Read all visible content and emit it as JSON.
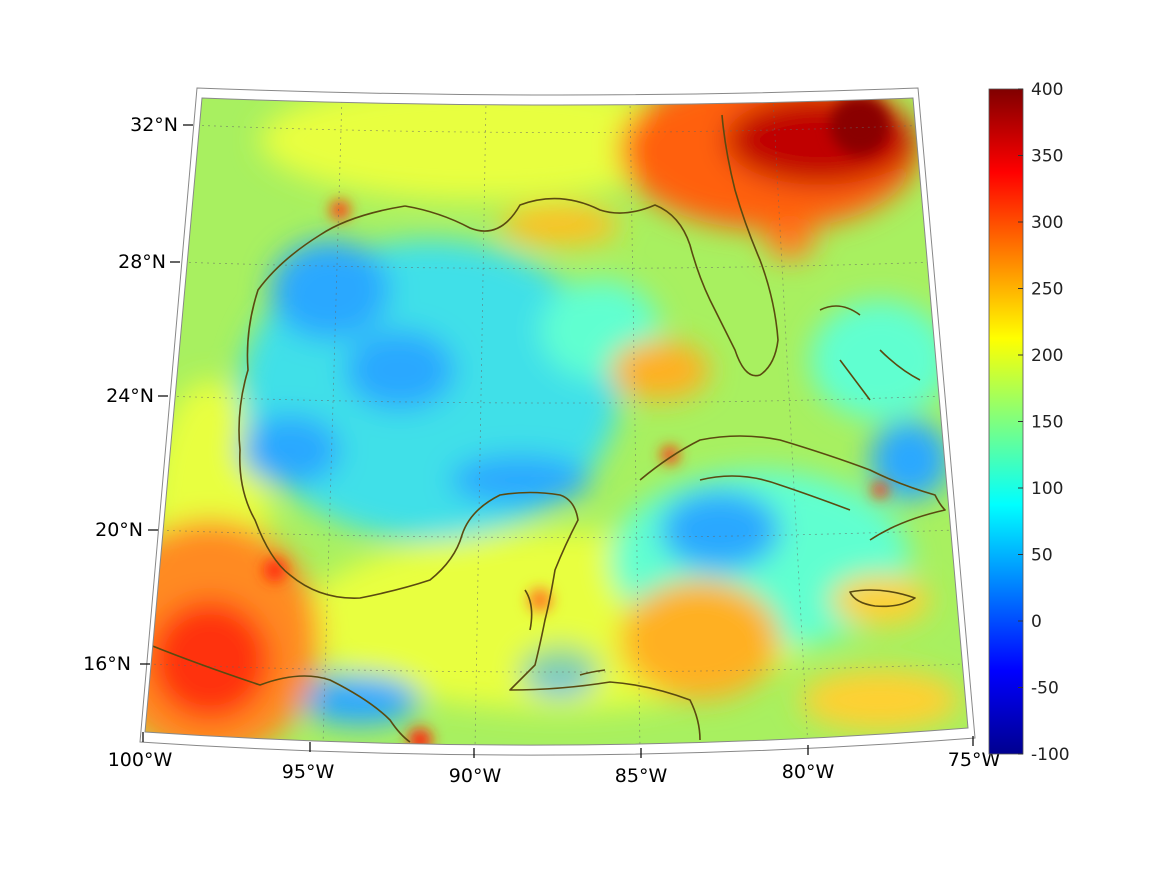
{
  "map": {
    "lon_range": [
      -100,
      -75
    ],
    "lat_range": [
      14,
      33
    ],
    "lon_ticks": [
      {
        "value": -100,
        "label": "100°W"
      },
      {
        "value": -95,
        "label": "95°W"
      },
      {
        "value": -90,
        "label": "90°W"
      },
      {
        "value": -85,
        "label": "85°W"
      },
      {
        "value": -80,
        "label": "80°W"
      },
      {
        "value": -75,
        "label": "75°W"
      }
    ],
    "lat_ticks": [
      {
        "value": 32,
        "label": "32°N"
      },
      {
        "value": 28,
        "label": "28°N"
      },
      {
        "value": 24,
        "label": "24°N"
      },
      {
        "value": 20,
        "label": "20°N"
      },
      {
        "value": 16,
        "label": "16°N"
      }
    ],
    "grid": true,
    "coastline_color": "#5a4a10"
  },
  "colorbar": {
    "min": -100,
    "max": 400,
    "ticks": [
      "400",
      "350",
      "300",
      "250",
      "200",
      "150",
      "100",
      "50",
      "0",
      "-50",
      "-100"
    ],
    "colormap": "jet",
    "placement": "right"
  }
}
